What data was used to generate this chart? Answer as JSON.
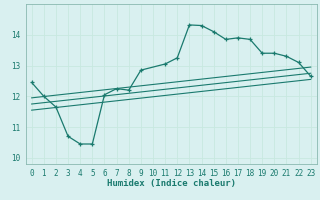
{
  "xlabel": "Humidex (Indice chaleur)",
  "bg_color": "#d9f0f0",
  "grid_color": "#b8dada",
  "line_color": "#1a7a6e",
  "xlim": [
    -0.5,
    23.5
  ],
  "ylim": [
    9.8,
    15.0
  ],
  "xticks": [
    0,
    1,
    2,
    3,
    4,
    5,
    6,
    7,
    8,
    9,
    10,
    11,
    12,
    13,
    14,
    15,
    16,
    17,
    18,
    19,
    20,
    21,
    22,
    23
  ],
  "yticks": [
    10,
    11,
    12,
    13,
    14
  ],
  "curve_x": [
    0,
    1,
    2,
    3,
    4,
    5,
    6,
    7,
    8,
    9,
    11,
    12,
    13,
    14,
    15,
    16,
    17,
    18,
    19,
    20,
    21,
    22,
    23
  ],
  "curve_y": [
    12.45,
    12.0,
    11.65,
    10.7,
    10.45,
    10.45,
    12.05,
    12.25,
    12.2,
    12.85,
    13.05,
    13.25,
    14.32,
    14.3,
    14.1,
    13.85,
    13.9,
    13.85,
    13.4,
    13.4,
    13.3,
    13.1,
    12.65
  ],
  "reg_lines": [
    {
      "x": [
        0,
        23
      ],
      "y": [
        11.55,
        12.55
      ]
    },
    {
      "x": [
        0,
        23
      ],
      "y": [
        11.75,
        12.75
      ]
    },
    {
      "x": [
        0,
        23
      ],
      "y": [
        11.95,
        12.95
      ]
    }
  ]
}
